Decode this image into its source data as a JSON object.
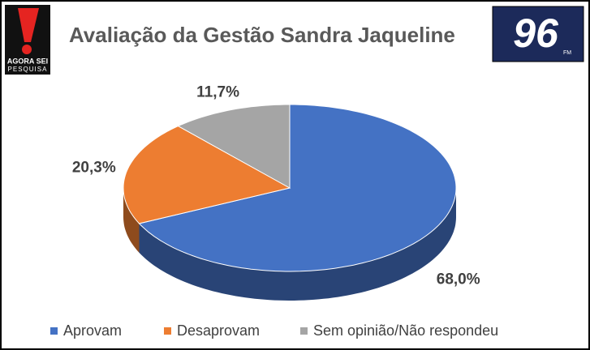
{
  "chart_data": {
    "type": "pie",
    "title": "Avaliação da Gestão Sandra Jaqueline",
    "categories": [
      "Aprovam",
      "Desaprovam",
      "Sem opinião/Não respondeu"
    ],
    "values": [
      68.0,
      20.3,
      11.7
    ],
    "value_labels": [
      "68,0%",
      "20,3%",
      "11,7%"
    ],
    "colors": [
      "#4472c4",
      "#ed7d31",
      "#a5a5a5"
    ],
    "legend": "bottom"
  },
  "logos": {
    "left": [
      "AGORA SEI",
      "PESQUISA"
    ],
    "right": "96",
    "right_small": "FM"
  }
}
